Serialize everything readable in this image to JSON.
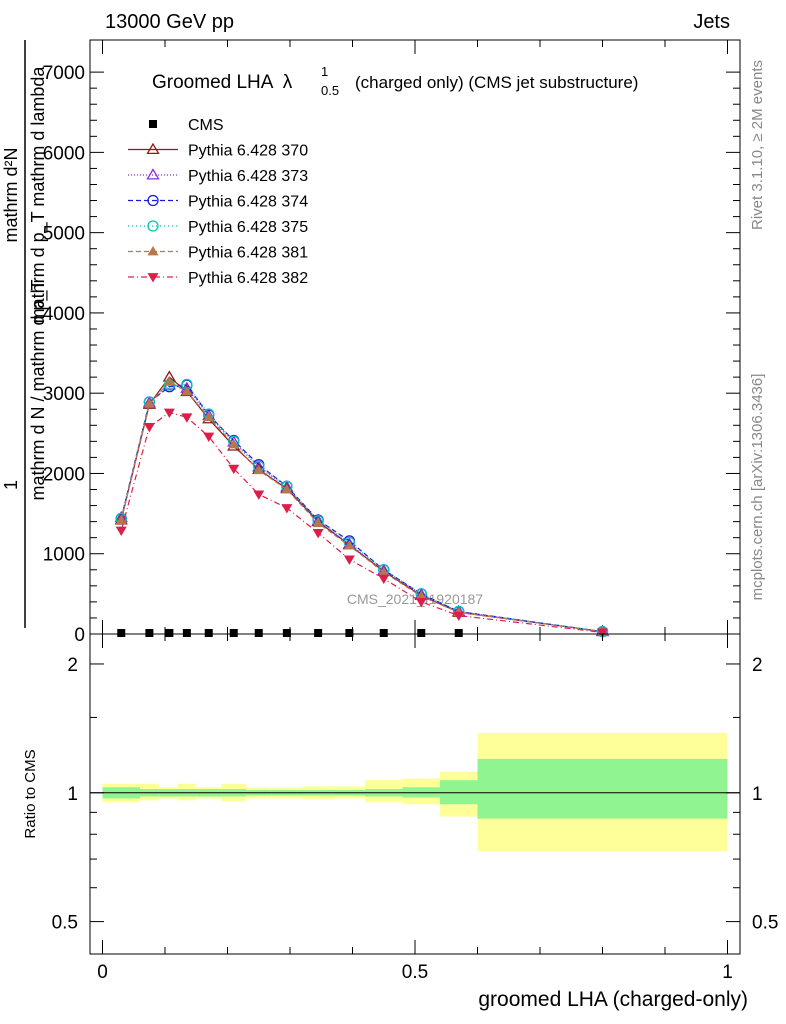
{
  "header": {
    "energy_label": "13000 GeV pp",
    "process_label": "Jets"
  },
  "side_labels": {
    "rivet": "Rivet 3.1.10, ≥ 2M events",
    "mcplots": "mcplots.cern.ch [arXiv:1306.3436]"
  },
  "watermark": "CMS_2021_I1920187",
  "chart_data": [
    {
      "type": "line",
      "panel": "main",
      "title_main": "Groomed LHA",
      "title_symbol": "λ",
      "title_sup": "1",
      "title_sub": "0.5",
      "title_suffix": "(charged only) (CMS jet substructure)",
      "ylabel_1": "mathrm d²N",
      "ylabel_2": "mathrm d p_T mathrm d lambda",
      "ylabel_3": "1",
      "ylabel_4": "mathrm d N / mathrm d p_T",
      "xlim": [
        -0.02,
        1.02
      ],
      "ylim": [
        0,
        7400
      ],
      "yticks": [
        0,
        1000,
        2000,
        3000,
        4000,
        5000,
        6000,
        7000
      ],
      "ytick_labels": [
        "0",
        "1000",
        "2000",
        "3000",
        "4000",
        "5000",
        "6000",
        "7000"
      ],
      "x": [
        0.03,
        0.075,
        0.107,
        0.135,
        0.17,
        0.21,
        0.25,
        0.295,
        0.345,
        0.395,
        0.45,
        0.51,
        0.57,
        0.8
      ],
      "series": [
        {
          "name": "CMS",
          "color": "#000000",
          "marker": "square",
          "dash": "none",
          "values": [
            0,
            0,
            0,
            0,
            0,
            0,
            0,
            0,
            0,
            0,
            0,
            0,
            0,
            null
          ]
        },
        {
          "name": "Pythia 6.428 370",
          "color": "#8b1a1a",
          "marker": "triangle-open",
          "dash": "none",
          "values": [
            1420,
            2860,
            3200,
            3020,
            2680,
            2340,
            2050,
            1810,
            1400,
            1110,
            780,
            480,
            270,
            30
          ]
        },
        {
          "name": "Pythia 6.428 373",
          "color": "#8a2be2",
          "marker": "triangle-open",
          "dash": "1,2",
          "values": [
            1450,
            2880,
            3100,
            3060,
            2720,
            2390,
            2080,
            1830,
            1410,
            1120,
            790,
            490,
            280,
            30
          ]
        },
        {
          "name": "Pythia 6.428 374",
          "color": "#1a1adc",
          "marker": "circle-open",
          "dash": "5,3",
          "values": [
            1440,
            2890,
            3080,
            3100,
            2730,
            2410,
            2110,
            1840,
            1420,
            1160,
            800,
            500,
            280,
            30
          ]
        },
        {
          "name": "Pythia 6.428 375",
          "color": "#00c8b4",
          "marker": "circle-open",
          "dash": "1,3",
          "values": [
            1440,
            2890,
            3100,
            3110,
            2740,
            2400,
            2090,
            1840,
            1410,
            1140,
            800,
            500,
            280,
            30
          ]
        },
        {
          "name": "Pythia 6.428 381",
          "color": "#b4784c",
          "marker": "triangle-filled",
          "dash": "5,3",
          "values": [
            1420,
            2870,
            3140,
            3020,
            2700,
            2360,
            2040,
            1800,
            1380,
            1100,
            770,
            470,
            270,
            30
          ]
        },
        {
          "name": "Pythia 6.428 382",
          "color": "#dc1e4b",
          "marker": "triangle-down-filled",
          "dash": "6,3,1,3",
          "values": [
            1290,
            2580,
            2760,
            2700,
            2460,
            2060,
            1740,
            1570,
            1260,
            930,
            690,
            400,
            230,
            20
          ]
        }
      ]
    },
    {
      "type": "area",
      "panel": "ratio",
      "ylabel": "Ratio to CMS",
      "xlabel": "groomed LHA (charged-only)",
      "xlim": [
        -0.02,
        1.02
      ],
      "ylim": [
        0.42,
        2.35
      ],
      "log_y": true,
      "xticks": [
        0,
        0.5,
        1
      ],
      "xtick_labels": [
        "0",
        "0.5",
        "1"
      ],
      "yticks": [
        0.5,
        1,
        2
      ],
      "ytick_labels": [
        "0.5",
        "1",
        "2"
      ],
      "bins": [
        0,
        0.06,
        0.09,
        0.12,
        0.15,
        0.19,
        0.23,
        0.27,
        0.32,
        0.37,
        0.42,
        0.48,
        0.54,
        0.6,
        1.0
      ],
      "stat_band": {
        "name": "stat",
        "color": "#90f490",
        "low": [
          0.97,
          0.98,
          0.98,
          0.98,
          0.98,
          0.98,
          0.985,
          0.985,
          0.985,
          0.985,
          0.98,
          0.975,
          0.94,
          0.87
        ],
        "high": [
          1.03,
          1.02,
          1.02,
          1.02,
          1.02,
          1.02,
          1.015,
          1.015,
          1.015,
          1.015,
          1.02,
          1.03,
          1.07,
          1.2
        ]
      },
      "total_band": {
        "name": "total",
        "color": "#ffff99",
        "low": [
          0.95,
          0.96,
          0.97,
          0.96,
          0.97,
          0.955,
          0.97,
          0.97,
          0.965,
          0.97,
          0.95,
          0.94,
          0.88,
          0.73
        ],
        "high": [
          1.05,
          1.05,
          1.03,
          1.05,
          1.03,
          1.05,
          1.03,
          1.03,
          1.035,
          1.035,
          1.07,
          1.08,
          1.12,
          1.38
        ]
      },
      "reference": 1
    }
  ]
}
